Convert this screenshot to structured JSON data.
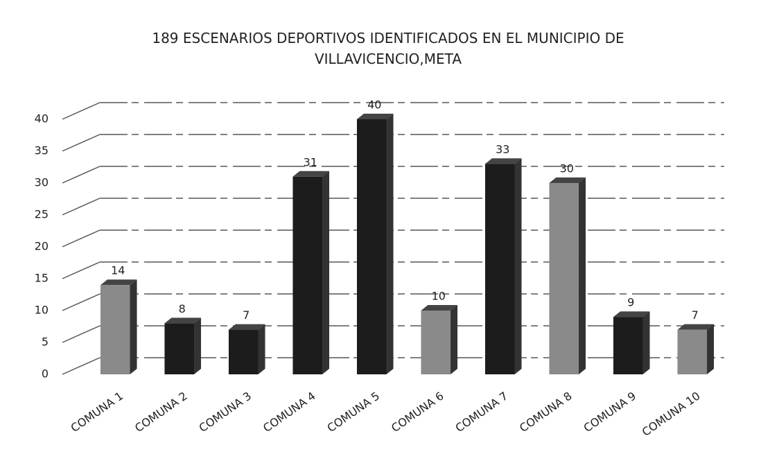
{
  "chart_data": {
    "type": "bar",
    "title": "189 ESCENARIOS DEPORTIVOS IDENTIFICADOS EN EL MUNICIPIO DE VILLAVICENCIO,META",
    "categories": [
      "COMUNA 1",
      "COMUNA 2",
      "COMUNA 3",
      "COMUNA 4",
      "COMUNA 5",
      "COMUNA 6",
      "COMUNA 7",
      "COMUNA 8",
      "COMUNA 9",
      "COMUNA 10"
    ],
    "values": [
      14,
      8,
      7,
      31,
      40,
      10,
      33,
      30,
      9,
      7
    ],
    "colors": [
      "#8a8a8a",
      "#1c1c1c",
      "#1c1c1c",
      "#1c1c1c",
      "#1c1c1c",
      "#8a8a8a",
      "#1c1c1c",
      "#8a8a8a",
      "#1c1c1c",
      "#8a8a8a"
    ],
    "ylim": [
      0,
      40
    ],
    "yticks": [
      0,
      5,
      10,
      15,
      20,
      25,
      30,
      35,
      40
    ],
    "grid": true
  }
}
